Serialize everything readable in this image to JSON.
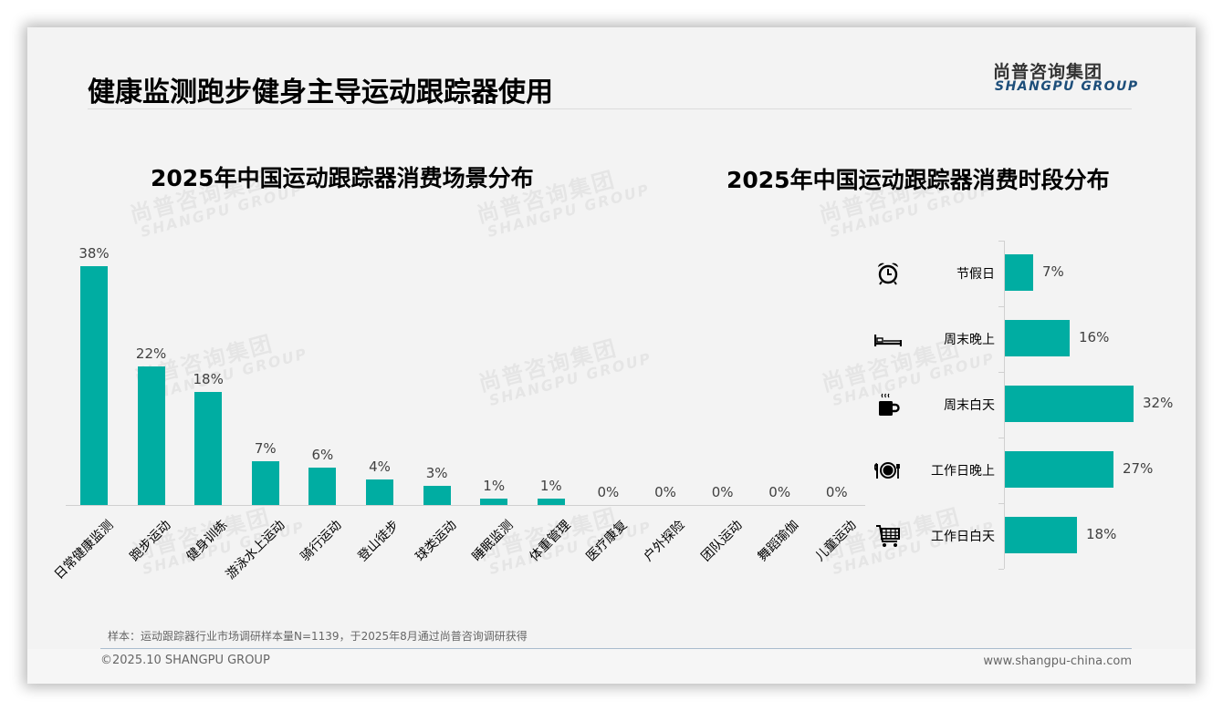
{
  "header": {
    "title": "健康监测跑步健身主导运动跟踪器使用",
    "logo_cn": "尚普咨询集团",
    "logo_en": "SHANGPU GROUP"
  },
  "watermark": {
    "cn": "尚普咨询集团",
    "en": "SHANGPU GROUP"
  },
  "colors": {
    "bar": "#00ada2",
    "logo_en": "#1d4e7a",
    "footer_rule": "#a9bccd"
  },
  "chart_data": [
    {
      "type": "bar",
      "title": "2025年中国运动跟踪器消费场景分布",
      "orientation": "vertical",
      "categories": [
        "日常健康监测",
        "跑步运动",
        "健身训练",
        "游泳水上运动",
        "骑行运动",
        "登山徒步",
        "球类运动",
        "睡眠监测",
        "体重管理",
        "医疗康复",
        "户外探险",
        "团队运动",
        "舞蹈瑜伽",
        "儿童运动"
      ],
      "values": [
        38,
        22,
        18,
        7,
        6,
        4,
        3,
        1,
        1,
        0,
        0,
        0,
        0,
        0
      ],
      "labels": [
        "38%",
        "22%",
        "18%",
        "7%",
        "6%",
        "4%",
        "3%",
        "1%",
        "1%",
        "0%",
        "0%",
        "0%",
        "0%",
        "0%"
      ],
      "unit": "%",
      "xlabel": "",
      "ylabel": "",
      "ylim": [
        0,
        38
      ],
      "grid": false,
      "legend": "none"
    },
    {
      "type": "bar",
      "title": "2025年中国运动跟踪器消费时段分布",
      "orientation": "horizontal",
      "categories": [
        "节假日",
        "周末晚上",
        "周末白天",
        "工作日晚上",
        "工作日白天"
      ],
      "values": [
        7,
        16,
        32,
        27,
        18
      ],
      "labels": [
        "7%",
        "16%",
        "32%",
        "27%",
        "18%"
      ],
      "icons": [
        "alarm-clock-icon",
        "bed-icon",
        "coffee-cup-icon",
        "plate-cutlery-icon",
        "shopping-cart-icon"
      ],
      "unit": "%",
      "xlabel": "",
      "ylabel": "",
      "grid": false,
      "legend": "none"
    }
  ],
  "footer": {
    "note": "样本：运动跟踪器行业市场调研样本量N=1139，于2025年8月通过尚普咨询调研获得",
    "copyright": "©2025.10 SHANGPU GROUP",
    "website": "www.shangpu-china.com"
  }
}
